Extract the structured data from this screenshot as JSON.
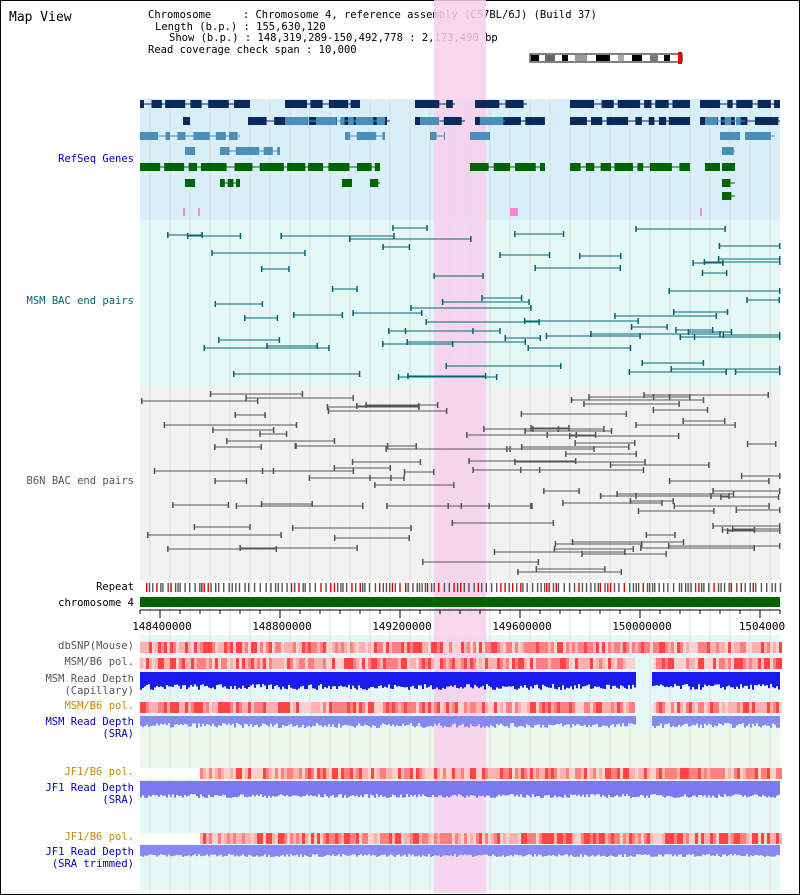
{
  "title": "Map View",
  "info": {
    "chromosome": "Chromosome     : Chromosome 4, reference assembly (C57BL/6J) (Build 37)",
    "length": "Length (b.p.) : 155,630,120",
    "show": "Show (b.p.) : 148,319,289-150,492,778 : 2,173,490 bp",
    "span": "Read coverage check span : 10,000"
  },
  "tracks": {
    "refseq": "RefSeq Genes",
    "msm_bac": "MSM BAC end pairs",
    "b6n_bac": "B6N BAC end pairs",
    "repeat": "Repeat",
    "chromosome": "chromosome 4",
    "dbsnp": "dbSNP(Mouse)",
    "msm_b6_pol": "MSM/B6 pol.",
    "msm_depth_cap": "MSM Read Depth\n(Capillary)",
    "msm_b6_pol2": "MSM/B6 pol.",
    "msm_depth_sra": "MSM Read Depth\n(SRA)",
    "jf1_b6_pol": "JF1/B6 pol.",
    "jf1_depth_sra": "JF1 Read Depth\n(SRA)",
    "jf1_b6_pol2": "JF1/B6 pol.",
    "jf1_depth_trim": "JF1 Read Depth\n(SRA trimmed)"
  },
  "ruler": [
    "148400000",
    "148800000",
    "149200000",
    "149600000",
    "150000000",
    "1504000"
  ],
  "colors": {
    "refseq": "#0000bb",
    "msm": "#006677",
    "b6n": "#555555",
    "pol_orange": "#cc8800",
    "dark_blue": "#0a2a5e",
    "mid_blue": "#4a8fb8",
    "dark_green": "#006400",
    "highlight": "#f8d0ec"
  }
}
